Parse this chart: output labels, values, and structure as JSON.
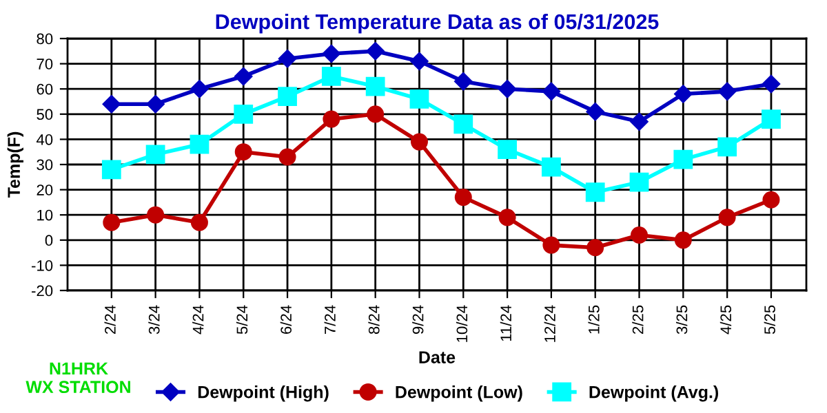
{
  "chart_data": {
    "type": "line",
    "title": "Dewpoint Temperature Data as of 05/31/2025",
    "xlabel": "Date",
    "ylabel": "Temp(F)",
    "categories": [
      "2/24",
      "3/24",
      "4/24",
      "5/24",
      "6/24",
      "7/24",
      "8/24",
      "9/24",
      "10/24",
      "11/24",
      "12/24",
      "1/25",
      "2/25",
      "3/25",
      "4/25",
      "5/25"
    ],
    "series": [
      {
        "name": "Dewpoint (High)",
        "color": "#0000c0",
        "marker": "diamond",
        "values": [
          54,
          54,
          60,
          65,
          72,
          74,
          75,
          71,
          63,
          60,
          59,
          51,
          47,
          58,
          59,
          62
        ]
      },
      {
        "name": "Dewpoint (Low)",
        "color": "#c00000",
        "marker": "circle",
        "values": [
          7,
          10,
          7,
          35,
          33,
          48,
          50,
          39,
          17,
          9,
          -2,
          -3,
          2,
          0,
          9,
          16
        ]
      },
      {
        "name": "Dewpoint (Avg.)",
        "color": "#00ffff",
        "marker": "square",
        "values": [
          28,
          34,
          38,
          50,
          57,
          65,
          61,
          56,
          46,
          36,
          29,
          19,
          23,
          32,
          37,
          48
        ]
      }
    ],
    "ylim": [
      -20,
      80
    ],
    "yticks": [
      -20,
      -10,
      0,
      10,
      20,
      30,
      40,
      50,
      60,
      70,
      80
    ],
    "grid": true,
    "legend": "bottom",
    "line_style": "solid",
    "annotations": [
      "N1HRK\nWX STATION"
    ]
  }
}
